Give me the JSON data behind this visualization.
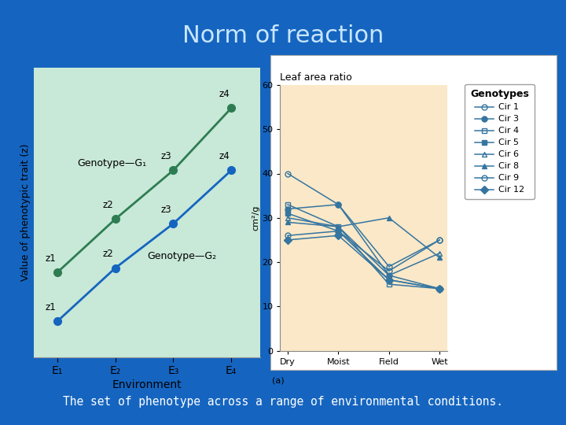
{
  "title": "Norm of reaction",
  "subtitle": "The set of phenotype across a range of environmental conditions.",
  "background_color": "#1565C0",
  "title_color": "#C8E6FF",
  "subtitle_color": "#FFFFFF",
  "left_chart": {
    "bg_color": "#C8E8D8",
    "border_color": "#888888",
    "g1_color": "#2E7D52",
    "g2_color": "#1565C0",
    "x_labels": [
      "E₁",
      "E₂",
      "E₃",
      "E₄"
    ],
    "g1_values": [
      19,
      31,
      42,
      56
    ],
    "g2_values": [
      8,
      20,
      30,
      42
    ],
    "g1_point_labels": [
      "z1",
      "z2",
      "z3",
      "z4"
    ],
    "g2_point_labels": [
      "z1",
      "z2",
      "z3",
      "z4"
    ],
    "xlabel": "Environment",
    "ylabel": "Value of phenotypic trait (z)",
    "genotype1_label": "Genotype—G₁",
    "genotype2_label": "Genotype—G₂"
  },
  "right_chart": {
    "plot_bg_color": "#FAE8C8",
    "outer_bg_color": "#FFFFFF",
    "title": "Leaf area ratio",
    "ylabel": "cm²/g",
    "x_labels": [
      "Dry",
      "Moist",
      "Field",
      "Wet"
    ],
    "ylim": [
      0,
      60
    ],
    "yticks": [
      0,
      10,
      20,
      30,
      40,
      50,
      60
    ],
    "line_color": "#3575A0",
    "series": {
      "Cir 1": {
        "values": [
          40,
          33,
          19,
          25
        ],
        "marker": "o",
        "filled": false
      },
      "Cir 3": {
        "values": [
          32,
          33,
          17,
          14
        ],
        "marker": "o",
        "filled": true
      },
      "Cir 4": {
        "values": [
          33,
          28,
          15,
          14
        ],
        "marker": "s",
        "filled": false
      },
      "Cir 5": {
        "values": [
          31,
          27,
          16,
          14
        ],
        "marker": "s",
        "filled": true
      },
      "Cir 6": {
        "values": [
          30,
          28,
          17,
          22
        ],
        "marker": "^",
        "filled": false
      },
      "Cir 8": {
        "values": [
          29,
          28,
          30,
          21
        ],
        "marker": "^",
        "filled": true
      },
      "Cir 9": {
        "values": [
          26,
          27,
          18,
          25
        ],
        "marker": "o",
        "filled": false
      },
      "Cir 12": {
        "values": [
          25,
          26,
          16,
          14
        ],
        "marker": "D",
        "filled": true
      }
    }
  }
}
